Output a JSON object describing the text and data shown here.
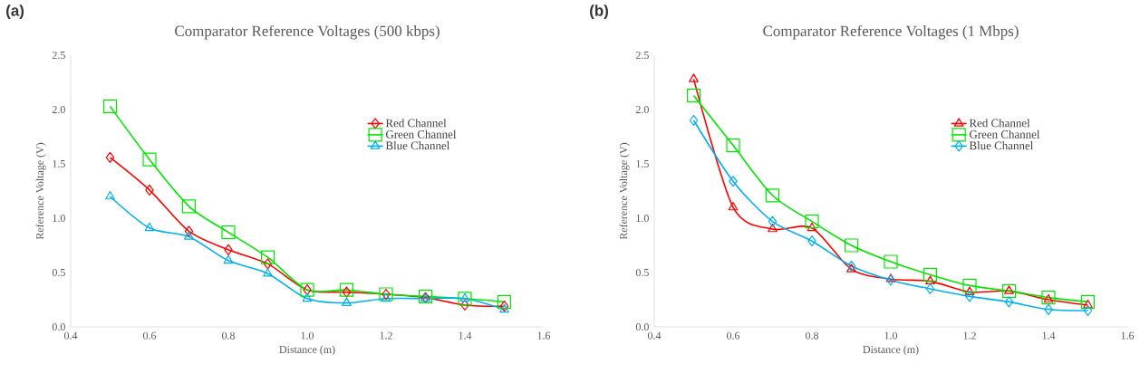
{
  "chart_data": [
    {
      "type": "line",
      "title": "Comparator Reference Voltages (500 kbps)",
      "annotations": [
        "(a)"
      ],
      "xlabel": "Distance (m)",
      "ylabel": "Reference Voltage (V)",
      "x": [
        0.5,
        0.6,
        0.7,
        0.8,
        0.9,
        1.0,
        1.1,
        1.2,
        1.3,
        1.4,
        1.5
      ],
      "xlim": [
        0.4,
        1.6
      ],
      "xticks": [
        {
          "value": 0.4,
          "label": "0.4"
        },
        {
          "value": 0.6,
          "label": "0.6"
        },
        {
          "value": 0.8,
          "label": "0.8"
        },
        {
          "value": 1.0,
          "label": "1.0"
        },
        {
          "value": 1.2,
          "label": "1.2"
        },
        {
          "value": 1.4,
          "label": "1.4"
        },
        {
          "value": 1.6,
          "label": "1.6"
        }
      ],
      "ylim": [
        0,
        2.5
      ],
      "yticks": [
        {
          "value": 0,
          "label": "0.0"
        },
        {
          "value": 0.5,
          "label": "0.5"
        },
        {
          "value": 1.0,
          "label": "1.0"
        },
        {
          "value": 1.5,
          "label": "1.5"
        },
        {
          "value": 2.0,
          "label": "2.0"
        },
        {
          "value": 2.5,
          "label": "2.5"
        }
      ],
      "grid": false,
      "legend": "right",
      "series": [
        {
          "name": "Red Channel",
          "color": "#ff0000",
          "marker": "diamond",
          "values": [
            1.56,
            1.26,
            0.88,
            0.71,
            0.58,
            0.34,
            0.32,
            0.3,
            0.27,
            0.2,
            0.19
          ]
        },
        {
          "name": "Green Channel",
          "color": "#00e600",
          "marker": "square",
          "values": [
            2.03,
            1.54,
            1.11,
            0.87,
            0.64,
            0.34,
            0.34,
            0.3,
            0.28,
            0.26,
            0.23
          ]
        },
        {
          "name": "Blue Channel",
          "color": "#00b0f0",
          "marker": "triangle",
          "values": [
            1.2,
            0.91,
            0.83,
            0.61,
            0.49,
            0.26,
            0.22,
            0.26,
            0.26,
            0.26,
            0.16
          ]
        }
      ]
    },
    {
      "type": "line",
      "title": "Comparator Reference Voltages (1 Mbps)",
      "annotations": [
        "(b)"
      ],
      "xlabel": "Distance (m)",
      "ylabel": "Reference Voltage (V)",
      "x": [
        0.5,
        0.6,
        0.7,
        0.8,
        0.9,
        1.0,
        1.1,
        1.2,
        1.3,
        1.4,
        1.5
      ],
      "xlim": [
        0.4,
        1.6
      ],
      "xticks": [
        {
          "value": 0.4,
          "label": "0.4"
        },
        {
          "value": 0.6,
          "label": "0.6"
        },
        {
          "value": 0.8,
          "label": "0.8"
        },
        {
          "value": 1.0,
          "label": "1.0"
        },
        {
          "value": 1.2,
          "label": "1.2"
        },
        {
          "value": 1.4,
          "label": "1.4"
        },
        {
          "value": 1.6,
          "label": "1.6"
        }
      ],
      "ylim": [
        0,
        2.5
      ],
      "yticks": [
        {
          "value": 0,
          "label": "0.0"
        },
        {
          "value": 0.5,
          "label": "0.5"
        },
        {
          "value": 1.0,
          "label": "1.0"
        },
        {
          "value": 1.5,
          "label": "1.5"
        },
        {
          "value": 2.0,
          "label": "2.0"
        },
        {
          "value": 2.5,
          "label": "2.5"
        }
      ],
      "grid": false,
      "legend": "right",
      "series": [
        {
          "name": "Red Channel",
          "color": "#ff0000",
          "marker": "triangle",
          "values": [
            2.28,
            1.1,
            0.9,
            0.91,
            0.53,
            0.44,
            0.42,
            0.32,
            0.33,
            0.25,
            0.2
          ]
        },
        {
          "name": "Green Channel",
          "color": "#00e600",
          "marker": "square",
          "values": [
            2.13,
            1.67,
            1.21,
            0.97,
            0.75,
            0.6,
            0.48,
            0.38,
            0.33,
            0.27,
            0.23
          ]
        },
        {
          "name": "Blue Channel",
          "color": "#00b0f0",
          "marker": "diamond",
          "values": [
            1.9,
            1.34,
            0.97,
            0.79,
            0.56,
            0.43,
            0.35,
            0.28,
            0.23,
            0.16,
            0.15
          ]
        }
      ]
    }
  ]
}
